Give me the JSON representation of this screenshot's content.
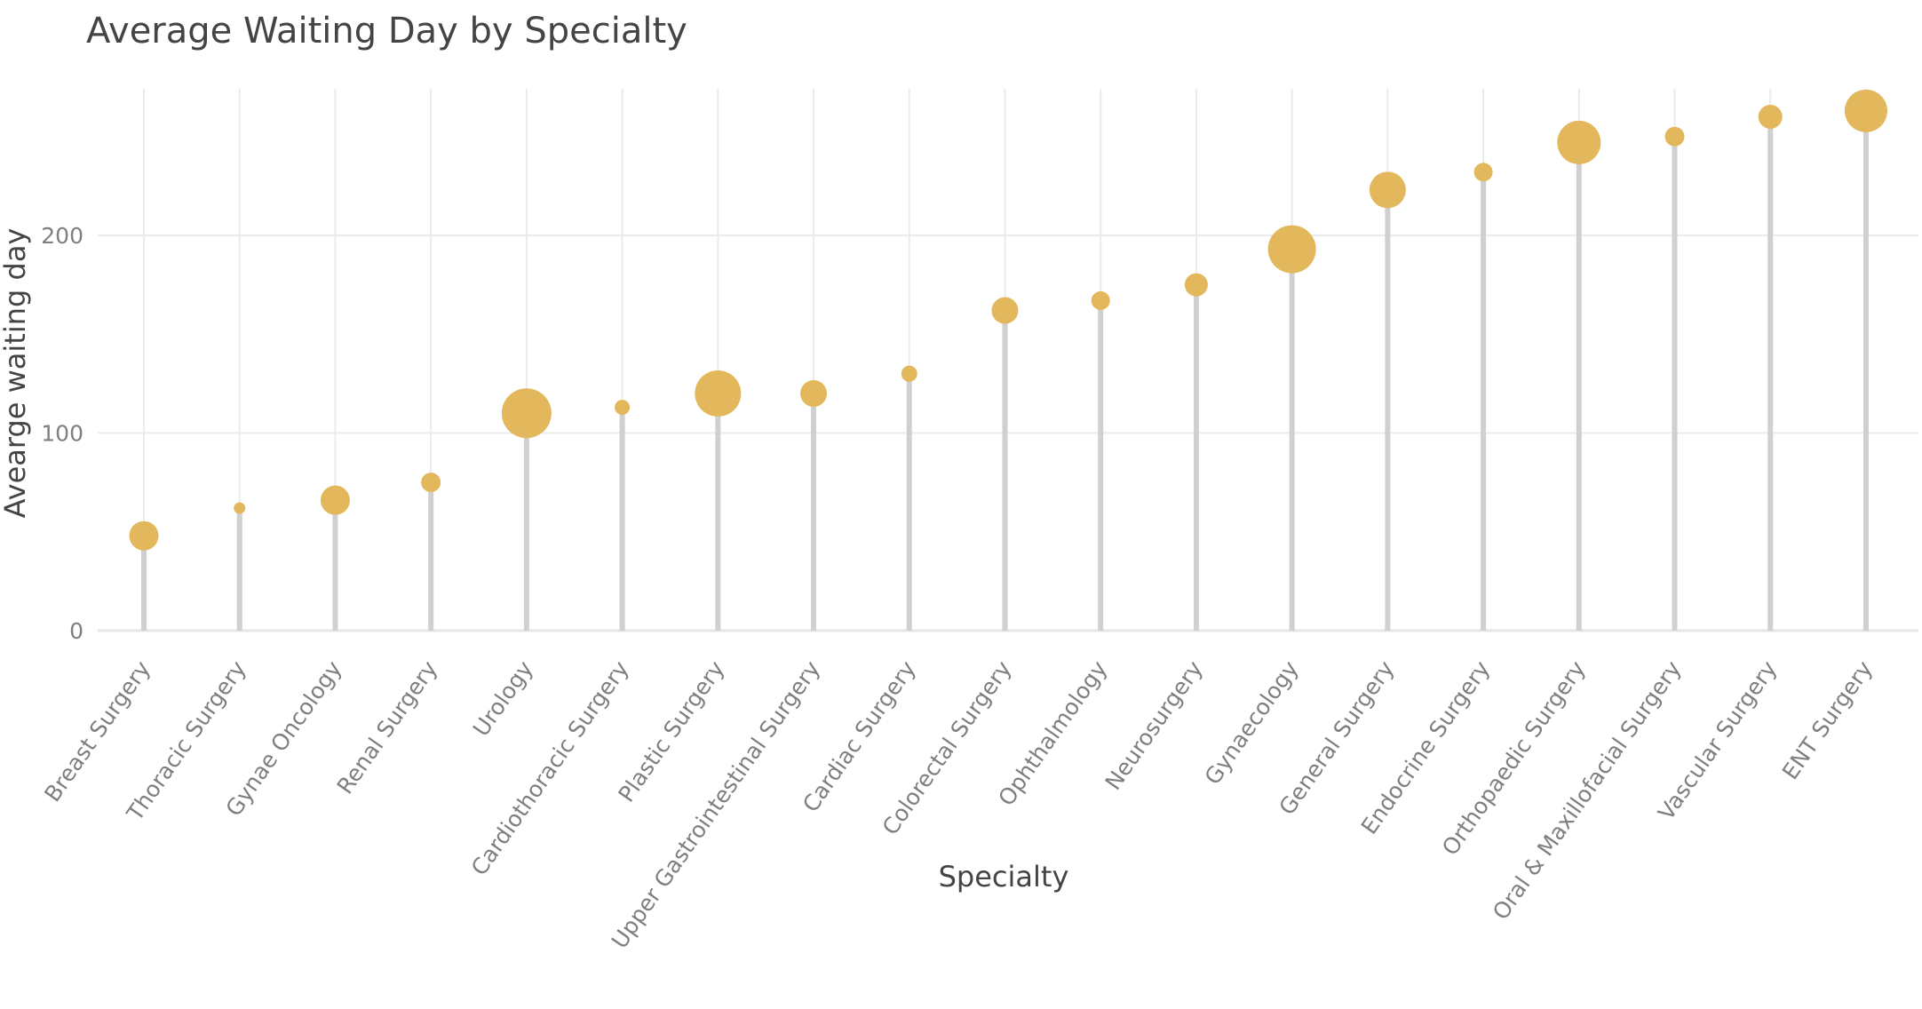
{
  "chart_data": {
    "type": "lollipop",
    "title": "Average Waiting Day by Specialty",
    "xlabel": "Specialty",
    "ylabel": "Avearge waiting day",
    "ylim": [
      0,
      275
    ],
    "yticks": [
      0,
      100,
      200
    ],
    "grid": true,
    "legend": "none",
    "point_color": "#e3b75b",
    "stem_color": "#d0d0d0",
    "categories": [
      "Breast Surgery",
      "Thoracic Surgery",
      "Gynae Oncology",
      "Renal Surgery",
      "Urology",
      "Cardiothoracic Surgery",
      "Plastic Surgery",
      "Upper Gastrointestinal Surgery",
      "Cardiac Surgery",
      "Colorectal Surgery",
      "Ophthalmology",
      "Neurosurgery",
      "Gynaecology",
      "General Surgery",
      "Endocrine Surgery",
      "Orthopaedic Surgery",
      "Oral & Maxillofacial Surgery",
      "Vascular Surgery",
      "ENT Surgery"
    ],
    "values": [
      48,
      62,
      66,
      75,
      110,
      113,
      120,
      120,
      130,
      162,
      167,
      175,
      193,
      223,
      232,
      247,
      250,
      260,
      263
    ],
    "point_size": [
      33,
      13,
      33,
      22,
      56,
      17,
      52,
      30,
      18,
      30,
      21,
      26,
      54,
      41,
      21,
      49,
      22,
      27,
      48
    ]
  }
}
